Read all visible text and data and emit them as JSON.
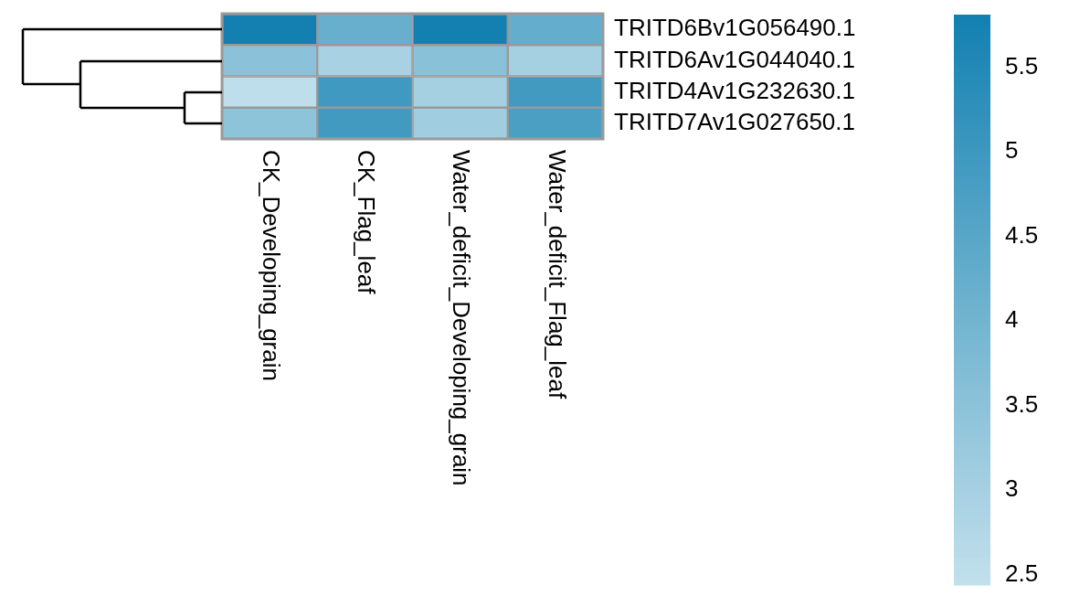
{
  "chart_data": {
    "type": "heatmap",
    "categories": [
      "CK_Developing_grain",
      "CK_Flag_leaf",
      "Water_deficit_Developing_grain",
      "Water_deficit_Flag_leaf"
    ],
    "y_categories": [
      "TRITD6Bv1G056490.1",
      "TRITD6Av1G044040.1",
      "TRITD4Av1G232630.1",
      "TRITD7Av1G027650.1"
    ],
    "cells": [
      [
        5.8,
        4.2,
        5.8,
        4.25
      ],
      [
        3.5,
        2.95,
        3.55,
        3.0
      ],
      [
        2.5,
        4.95,
        3.0,
        4.9
      ],
      [
        3.45,
        4.9,
        3.1,
        4.75
      ]
    ],
    "clim": [
      2.44,
      5.81
    ],
    "cticks": [
      2.5,
      3,
      3.5,
      4,
      4.5,
      5,
      5.5
    ]
  }
}
